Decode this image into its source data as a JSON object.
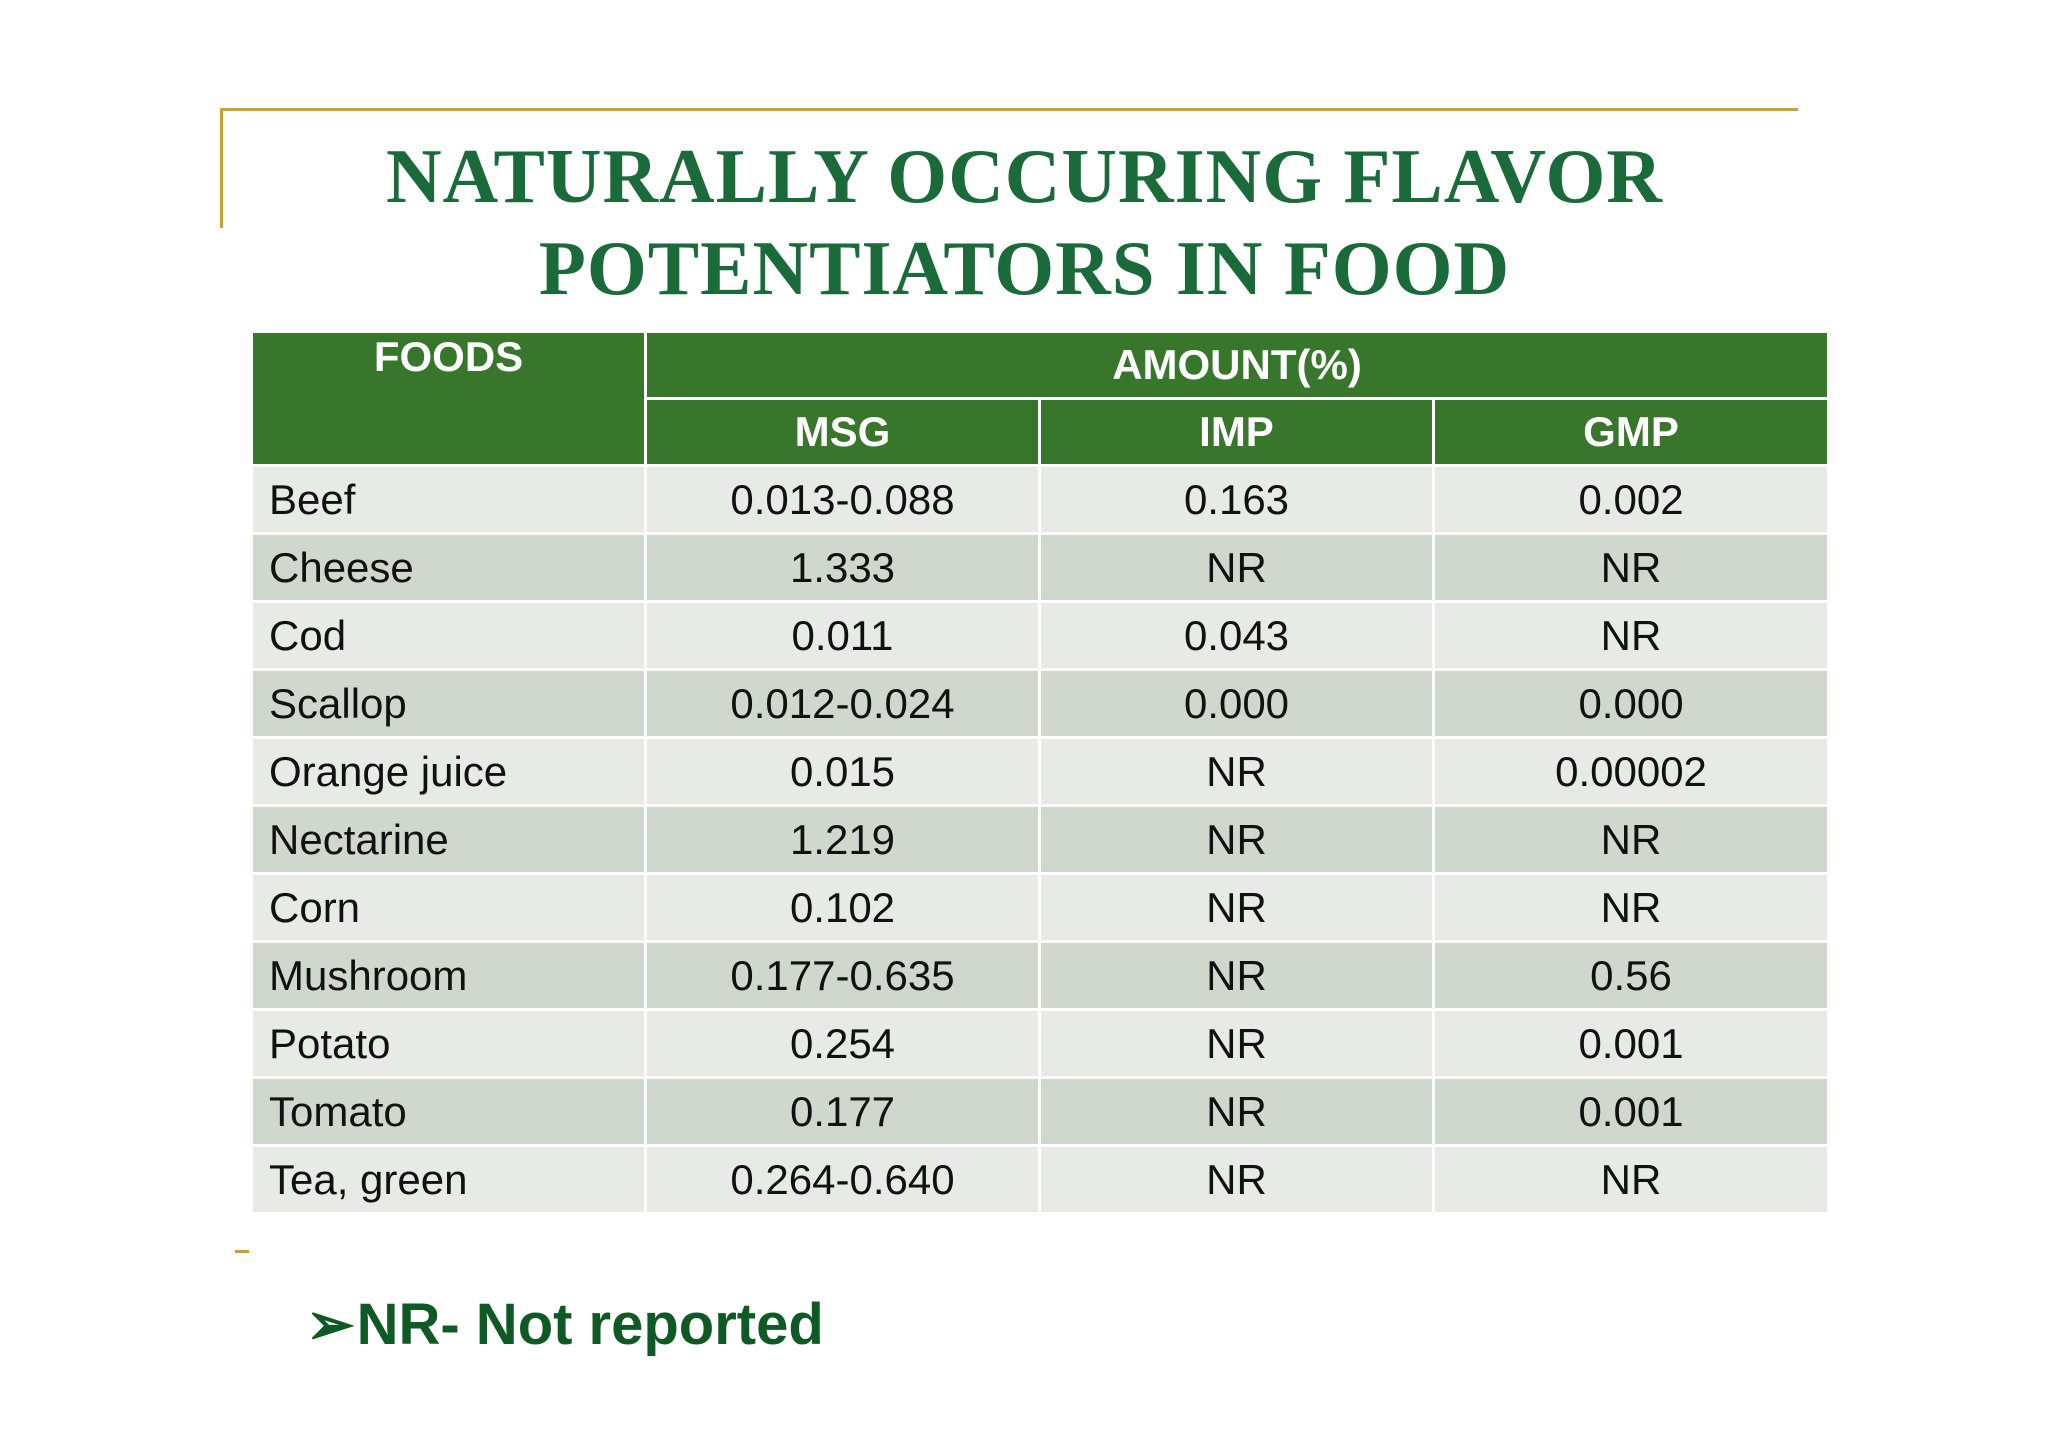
{
  "title_line1": "NATURALLY OCCURING FLAVOR",
  "title_line2": "POTENTIATORS IN FOOD",
  "table": {
    "header_foods": "FOODS",
    "header_amount": "AMOUNT(%)",
    "subheaders": [
      "MSG",
      "IMP",
      "GMP"
    ],
    "rows": [
      {
        "food": "Beef",
        "msg": "0.013-0.088",
        "imp": "0.163",
        "gmp": "0.002"
      },
      {
        "food": "Cheese",
        "msg": "1.333",
        "imp": "NR",
        "gmp": "NR"
      },
      {
        "food": "Cod",
        "msg": "0.011",
        "imp": "0.043",
        "gmp": "NR"
      },
      {
        "food": "Scallop",
        "msg": "0.012-0.024",
        "imp": "0.000",
        "gmp": "0.000"
      },
      {
        "food": "Orange juice",
        "msg": "0.015",
        "imp": "NR",
        "gmp": "0.00002"
      },
      {
        "food": "Nectarine",
        "msg": "1.219",
        "imp": "NR",
        "gmp": "NR"
      },
      {
        "food": "Corn",
        "msg": "0.102",
        "imp": "NR",
        "gmp": "NR"
      },
      {
        "food": "Mushroom",
        "msg": "0.177-0.635",
        "imp": "NR",
        "gmp": "0.56"
      },
      {
        "food": "Potato",
        "msg": "0.254",
        "imp": "NR",
        "gmp": "0.001"
      },
      {
        "food": "Tomato",
        "msg": "0.177",
        "imp": "NR",
        "gmp": "0.001"
      },
      {
        "food": "Tea, green",
        "msg": "0.264-0.640",
        "imp": "NR",
        "gmp": "NR"
      }
    ]
  },
  "note": {
    "bullet": "➢",
    "text": "NR- Not reported"
  },
  "colors": {
    "title": "#1b6b3a",
    "header_bg": "#38762c",
    "row_light": "#e8eae7",
    "row_dark": "#d0d8ce",
    "accent_line": "#c9a227",
    "note": "#0f5a24"
  }
}
